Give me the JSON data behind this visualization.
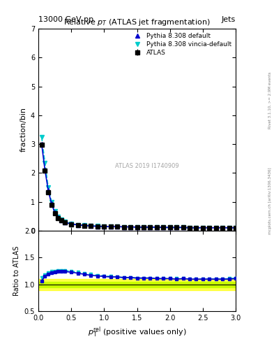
{
  "title": "Relative $p_{T}$ (ATLAS jet fragmentation)",
  "header_left": "13000 GeV pp",
  "header_right": "Jets",
  "ylabel_main": "fraction/bin",
  "ylabel_ratio": "Ratio to ATLAS",
  "watermark": "ATLAS 2019 I1740909",
  "right_label": "mcplots.cern.ch [arXiv:1306.3436]",
  "right_label2": "Rivet 3.1.10, >= 2.9M events",
  "ylim_main": [
    0,
    7
  ],
  "ylim_ratio": [
    0.5,
    2.0
  ],
  "xlim": [
    0,
    3
  ],
  "x_data": [
    0.05,
    0.1,
    0.15,
    0.2,
    0.25,
    0.3,
    0.35,
    0.4,
    0.5,
    0.6,
    0.7,
    0.8,
    0.9,
    1.0,
    1.1,
    1.2,
    1.3,
    1.4,
    1.5,
    1.6,
    1.7,
    1.8,
    1.9,
    2.0,
    2.1,
    2.2,
    2.3,
    2.4,
    2.5,
    2.6,
    2.7,
    2.8,
    2.9,
    3.0
  ],
  "atlas_y": [
    2.98,
    2.07,
    1.32,
    0.9,
    0.6,
    0.44,
    0.35,
    0.28,
    0.22,
    0.19,
    0.17,
    0.16,
    0.15,
    0.14,
    0.14,
    0.14,
    0.13,
    0.13,
    0.12,
    0.12,
    0.12,
    0.12,
    0.11,
    0.11,
    0.11,
    0.11,
    0.1,
    0.1,
    0.1,
    0.1,
    0.1,
    0.1,
    0.1,
    0.1
  ],
  "pythia_default_y": [
    3.0,
    2.1,
    1.4,
    0.93,
    0.63,
    0.46,
    0.36,
    0.29,
    0.23,
    0.2,
    0.18,
    0.16,
    0.15,
    0.14,
    0.14,
    0.14,
    0.13,
    0.13,
    0.12,
    0.12,
    0.12,
    0.12,
    0.11,
    0.11,
    0.11,
    0.11,
    0.1,
    0.1,
    0.1,
    0.1,
    0.1,
    0.1,
    0.1,
    0.1
  ],
  "pythia_vincia_y": [
    3.25,
    2.35,
    1.5,
    1.0,
    0.68,
    0.49,
    0.38,
    0.3,
    0.24,
    0.2,
    0.18,
    0.17,
    0.16,
    0.15,
    0.14,
    0.14,
    0.13,
    0.13,
    0.12,
    0.12,
    0.12,
    0.12,
    0.11,
    0.11,
    0.11,
    0.11,
    0.1,
    0.1,
    0.1,
    0.1,
    0.1,
    0.1,
    0.1,
    0.1
  ],
  "ratio_default_y": [
    1.07,
    1.15,
    1.2,
    1.22,
    1.23,
    1.24,
    1.24,
    1.24,
    1.23,
    1.21,
    1.19,
    1.17,
    1.16,
    1.15,
    1.14,
    1.14,
    1.13,
    1.13,
    1.12,
    1.12,
    1.12,
    1.11,
    1.11,
    1.11,
    1.1,
    1.11,
    1.1,
    1.1,
    1.1,
    1.1,
    1.1,
    1.1,
    1.1,
    1.11
  ],
  "ratio_vincia_y": [
    1.13,
    1.18,
    1.22,
    1.24,
    1.25,
    1.26,
    1.26,
    1.26,
    1.25,
    1.23,
    1.21,
    1.19,
    1.17,
    1.16,
    1.15,
    1.14,
    1.13,
    1.13,
    1.12,
    1.12,
    1.12,
    1.11,
    1.11,
    1.11,
    1.11,
    1.11,
    1.1,
    1.1,
    1.1,
    1.1,
    1.1,
    1.1,
    1.11,
    1.12
  ],
  "atlas_err": [
    0.03,
    0.02,
    0.015,
    0.01,
    0.008,
    0.006,
    0.005,
    0.004,
    0.003,
    0.003,
    0.002,
    0.002,
    0.002,
    0.002,
    0.002,
    0.002,
    0.002,
    0.002,
    0.002,
    0.002,
    0.002,
    0.002,
    0.002,
    0.002,
    0.002,
    0.002,
    0.002,
    0.002,
    0.002,
    0.002,
    0.002,
    0.002,
    0.002,
    0.002
  ],
  "color_atlas": "#000000",
  "color_default": "#0000cc",
  "color_vincia": "#00cccc",
  "color_band_green": "#c8ff00",
  "color_band_yellow": "#ffff00",
  "bg_color": "#ffffff"
}
